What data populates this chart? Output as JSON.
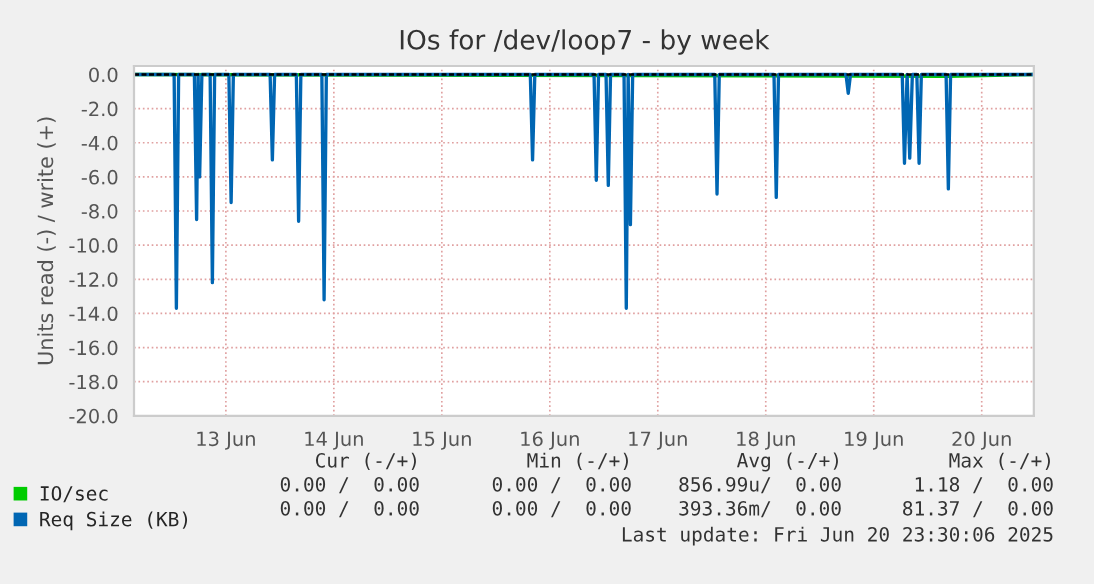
{
  "chart_data": {
    "type": "line",
    "title": "IOs for /dev/loop7 - by week",
    "ylabel": "Units read (-) / write (+)",
    "xlim": [
      "2025-06-12T15:35",
      "2025-06-20T23:35"
    ],
    "xticks": [
      {
        "value": "2025-06-13T12:00",
        "label": "13 Jun"
      },
      {
        "value": "2025-06-14T12:00",
        "label": "14 Jun"
      },
      {
        "value": "2025-06-15T12:00",
        "label": "15 Jun"
      },
      {
        "value": "2025-06-16T12:00",
        "label": "16 Jun"
      },
      {
        "value": "2025-06-17T12:00",
        "label": "17 Jun"
      },
      {
        "value": "2025-06-18T12:00",
        "label": "18 Jun"
      },
      {
        "value": "2025-06-19T12:00",
        "label": "19 Jun"
      },
      {
        "value": "2025-06-20T12:00",
        "label": "20 Jun"
      }
    ],
    "ylim": [
      -20,
      0.5
    ],
    "yticks": [
      {
        "value": 0,
        "label": "0.0"
      },
      {
        "value": -2,
        "label": "-2.0"
      },
      {
        "value": -4,
        "label": "-4.0"
      },
      {
        "value": -6,
        "label": "-6.0"
      },
      {
        "value": -8,
        "label": "-8.0"
      },
      {
        "value": -10,
        "label": "-10.0"
      },
      {
        "value": -12,
        "label": "-12.0"
      },
      {
        "value": -14,
        "label": "-14.0"
      },
      {
        "value": -16,
        "label": "-16.0"
      },
      {
        "value": -18,
        "label": "-18.0"
      },
      {
        "value": -20,
        "label": "-20.0"
      }
    ],
    "grid": true,
    "legend": "bottom",
    "series": [
      {
        "name": "IO/sec",
        "color": "#00cc00",
        "x": [
          "2025-06-12T15:35",
          "2025-06-20T04:35",
          "2025-06-20T23:35"
        ],
        "values": [
          0,
          -0.1,
          0
        ]
      },
      {
        "name": "Req Size (KB)",
        "color": "#0066b3",
        "x": [
          "2025-06-12T15:35",
          "2025-06-13T00:30",
          "2025-06-13T01:00",
          "2025-06-13T01:30",
          "2025-06-13T05:00",
          "2025-06-13T05:30",
          "2025-06-13T05:50",
          "2025-06-13T06:10",
          "2025-06-13T06:40",
          "2025-06-13T08:30",
          "2025-06-13T09:00",
          "2025-06-13T09:30",
          "2025-06-13T12:40",
          "2025-06-13T13:10",
          "2025-06-13T13:40",
          "2025-06-13T21:50",
          "2025-06-13T22:20",
          "2025-06-13T22:50",
          "2025-06-14T03:40",
          "2025-06-14T04:10",
          "2025-06-14T04:40",
          "2025-06-14T09:20",
          "2025-06-14T09:50",
          "2025-06-14T10:20",
          "2025-06-16T07:40",
          "2025-06-16T08:10",
          "2025-06-16T08:40",
          "2025-06-16T21:50",
          "2025-06-16T22:20",
          "2025-06-16T22:50",
          "2025-06-17T00:30",
          "2025-06-17T01:00",
          "2025-06-17T01:30",
          "2025-06-17T04:30",
          "2025-06-17T05:00",
          "2025-06-17T05:25",
          "2025-06-17T05:55",
          "2025-06-17T06:25",
          "2025-06-18T00:40",
          "2025-06-18T01:10",
          "2025-06-18T01:40",
          "2025-06-18T13:50",
          "2025-06-18T14:20",
          "2025-06-18T14:50",
          "2025-06-19T05:50",
          "2025-06-19T06:20",
          "2025-06-19T06:50",
          "2025-06-19T18:20",
          "2025-06-19T18:50",
          "2025-06-19T19:25",
          "2025-06-19T20:00",
          "2025-06-19T20:35",
          "2025-06-19T21:35",
          "2025-06-19T22:05",
          "2025-06-19T22:35",
          "2025-06-20T04:05",
          "2025-06-20T04:35",
          "2025-06-20T05:05",
          "2025-06-20T23:35"
        ],
        "values": [
          0,
          0,
          -13.7,
          0,
          0,
          -8.5,
          0,
          -6.0,
          0,
          0,
          -12.2,
          0,
          0,
          -7.5,
          0,
          0,
          -5.0,
          0,
          0,
          -8.6,
          0,
          0,
          -13.2,
          0,
          0,
          -5.0,
          0,
          0,
          -6.2,
          0,
          0,
          -6.5,
          0,
          0,
          -13.7,
          0,
          -8.8,
          0,
          0,
          -7.0,
          0,
          0,
          -7.2,
          0,
          0,
          -1.1,
          0,
          0,
          -5.2,
          0,
          -4.9,
          0,
          0,
          -5.2,
          0,
          0,
          -6.7,
          0,
          0
        ]
      }
    ],
    "annotations": [
      "Cur (-/+)",
      "Min (-/+)",
      "Avg (-/+)",
      "Max (-/+)",
      "0.00 /  0.00",
      "0.00 /  0.00",
      "856.99u/  0.00",
      "1.18 /  0.00",
      "0.00 /  0.00",
      "0.00 /  0.00",
      "393.36m/  0.00",
      "81.37 /  0.00",
      "Last update: Fri Jun 20 23:30:06 2025"
    ]
  }
}
